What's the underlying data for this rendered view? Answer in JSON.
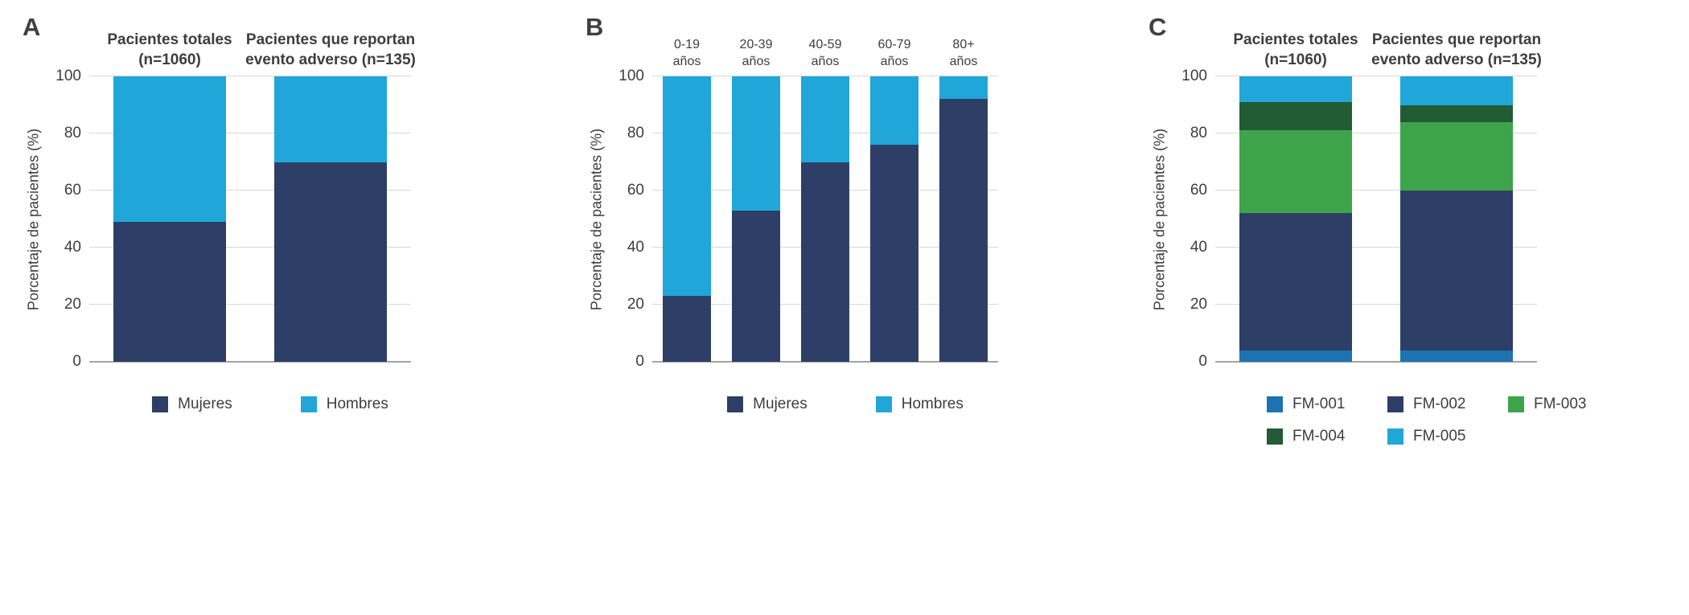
{
  "figure": {
    "background": "#ffffff",
    "text_color": "#3d3d3d",
    "gridline_color": "#d8d8d8",
    "axis_line_color": "#a3a3a3"
  },
  "chart_data": [
    {
      "panel_label": "A",
      "type": "bar",
      "stacked": true,
      "grid": true,
      "ylabel": "Porcentaje de pacientes (%)",
      "xlabel": "",
      "ylim": [
        0,
        100
      ],
      "yticks": [
        0,
        20,
        40,
        60,
        80,
        100
      ],
      "categories": [
        "Pacientes totales\n(n=1060)",
        "Pacientes que reportan\nevento adverso (n=135)"
      ],
      "series": [
        {
          "name": "Mujeres",
          "color": "#2d3f66",
          "values": [
            49,
            70
          ]
        },
        {
          "name": "Hombres",
          "color": "#20a6d8",
          "values": [
            51,
            30
          ]
        }
      ],
      "legend": {
        "position": "bottom-center",
        "entries": [
          "Mujeres",
          "Hombres"
        ]
      }
    },
    {
      "panel_label": "B",
      "type": "bar",
      "stacked": true,
      "grid": true,
      "ylabel": "Porcentaje de pacientes (%)",
      "xlabel": "",
      "ylim": [
        0,
        100
      ],
      "yticks": [
        0,
        20,
        40,
        60,
        80,
        100
      ],
      "categories": [
        "0-19\naños",
        "20-39\naños",
        "40-59\naños",
        "60-79\naños",
        "80+\naños"
      ],
      "series": [
        {
          "name": "Mujeres",
          "color": "#2d3f66",
          "values": [
            23,
            53,
            70,
            76,
            92
          ]
        },
        {
          "name": "Hombres",
          "color": "#20a6d8",
          "values": [
            77,
            47,
            30,
            24,
            8
          ]
        }
      ],
      "legend": {
        "position": "bottom-center",
        "entries": [
          "Mujeres",
          "Hombres"
        ]
      }
    },
    {
      "panel_label": "C",
      "type": "bar",
      "stacked": true,
      "grid": true,
      "ylabel": "Porcentaje de pacientes (%)",
      "xlabel": "",
      "ylim": [
        0,
        100
      ],
      "yticks": [
        0,
        20,
        40,
        60,
        80,
        100
      ],
      "categories": [
        "Pacientes totales\n(n=1060)",
        "Pacientes que reportan\nevento adverso (n=135)"
      ],
      "series": [
        {
          "name": "FM-001",
          "color": "#1d72b2",
          "values": [
            4,
            4
          ]
        },
        {
          "name": "FM-002",
          "color": "#2d3f66",
          "values": [
            48,
            56
          ]
        },
        {
          "name": "FM-003",
          "color": "#3ea44b",
          "values": [
            29,
            24
          ]
        },
        {
          "name": "FM-004",
          "color": "#215c35",
          "values": [
            10,
            6
          ]
        },
        {
          "name": "FM-005",
          "color": "#20a6d8",
          "values": [
            9,
            10
          ]
        }
      ],
      "legend": {
        "position": "bottom-left",
        "rows": [
          [
            "FM-001",
            "FM-002",
            "FM-003"
          ],
          [
            "FM-004",
            "FM-005"
          ]
        ]
      }
    }
  ]
}
